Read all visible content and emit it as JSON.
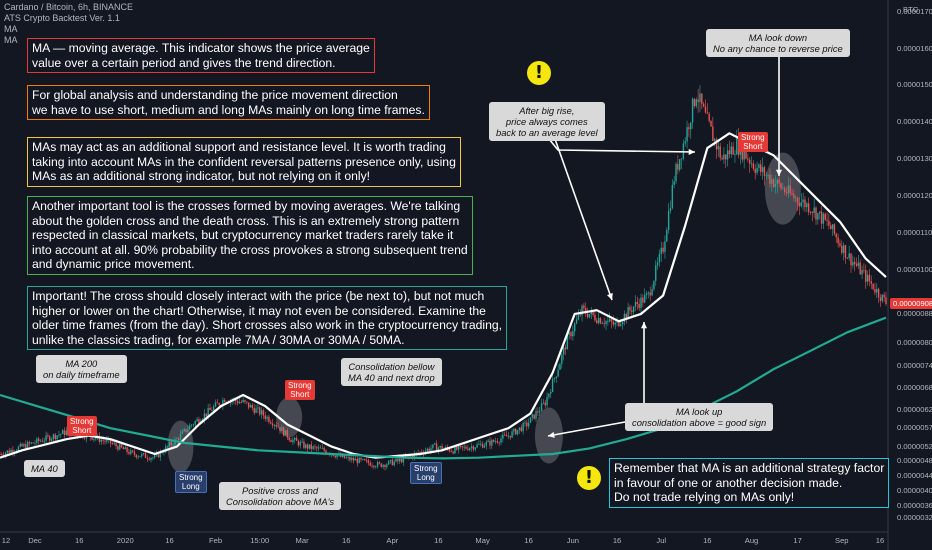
{
  "header": {
    "title": "Cardano / Bitcoin, 6h, BINANCE",
    "indicator": "ATS Crypto Backtest Ver. 1.1",
    "ma1": "MA",
    "ma2": "MA"
  },
  "colors": {
    "background": "#131722",
    "candle_up": "#26a69a",
    "candle_down": "#ef5350",
    "ma_short": "#ffffff",
    "ma_long": "#22ab94",
    "annotation_line": "#ffffff",
    "note1_border": "#e53935",
    "note2_border": "#f57c00",
    "note3_border": "#f5c542",
    "note4_border": "#4caf50",
    "note5_border": "#26a69a",
    "note6_border": "#26c6da"
  },
  "notes": {
    "n1": [
      "MA — moving average. This indicator shows the price average",
      "value over a certain period and gives the trend direction."
    ],
    "n2": [
      "For global analysis and understanding the price movement direction",
      "we have to use short, medium and long MAs mainly on long time frames."
    ],
    "n3": [
      "MAs may act as an additional support and resistance level. It is worth trading",
      "taking into account MAs in the confident reversal patterns presence only, using",
      "MAs as an additional strong indicator, but not relying on it only!"
    ],
    "n4": [
      "Another important tool is the crosses formed by moving averages. We're talking",
      "about the golden cross and the death cross. This is an extremely strong pattern",
      "respected in classical markets, but cryptocurrency market traders rarely take it",
      "into account at all. 90% probability the cross provokes a strong subsequent trend",
      "and dynamic price movement."
    ],
    "n5": [
      "Important! The cross should closely interact with the price (be next to), but not much",
      "higher or lower on the chart! Otherwise, it may not even be considered. Examine the",
      "older time frames (from the day). Short crosses also work in the cryptocurrency trading,",
      "unlike the classics trading, for example 7MA / 30MA or 30MA / 50MA."
    ],
    "n6": [
      "Remember that MA is an additional strategy factor",
      "in favour of one or another decision made.",
      "Do not trade relying on MAs only!"
    ]
  },
  "callouts": {
    "ma200": [
      "MA 200",
      "on daily timeframe"
    ],
    "ma40": [
      "MA 40"
    ],
    "consolidation": [
      "Consolidation bellow",
      "MA 40 and next drop"
    ],
    "positive": [
      "Positive cross and",
      "Consolidation above MA's"
    ],
    "bigrise": [
      "After big rise,",
      "price always comes",
      "back to an average level"
    ],
    "lookup": [
      "MA look up",
      "consolidation above = good sign"
    ],
    "lookdown": [
      "MA look down",
      "No any chance to reverse price"
    ]
  },
  "signals": {
    "short1": [
      "Strong",
      "Short"
    ],
    "short2": [
      "Strong",
      "Short"
    ],
    "short3": [
      "Strong",
      "Short"
    ],
    "long1": [
      "Strong",
      "Long"
    ],
    "long2": [
      "Strong",
      "Long"
    ]
  },
  "warn_symbol": "!",
  "chart_data": {
    "type": "line",
    "title": "Cardano / Bitcoin, 6h, BINANCE",
    "currency": "BTC",
    "last_price": "0.00000908",
    "ylim": [
      3.1e-06,
      1.71e-05
    ],
    "y_ticks": [
      "0.00001700",
      "0.00001600",
      "0.00001500",
      "0.00001400",
      "0.00001300",
      "0.00001200",
      "0.00001100",
      "0.00001000",
      "0.00000880",
      "0.00000800",
      "0.00000740",
      "0.00000680",
      "0.00000620",
      "0.00000570",
      "0.00000520",
      "0.00000480",
      "0.00000440",
      "0.00000400",
      "0.00000360",
      "0.00000325"
    ],
    "x_ticks": [
      "12",
      "Dec",
      "16",
      "2020",
      "16",
      "Feb",
      "15:00",
      "Mar",
      "16",
      "Apr",
      "16",
      "May",
      "16",
      "Jun",
      "16",
      "Jul",
      "16",
      "Aug",
      "17",
      "Sep",
      "16"
    ],
    "x_tick_index": [
      0,
      19,
      43,
      68,
      92,
      117,
      141,
      164,
      188,
      213,
      238,
      262,
      287,
      311,
      335,
      359,
      384,
      408,
      433,
      457,
      481
    ],
    "x_index_range": [
      0,
      481
    ],
    "series": [
      {
        "name": "MA 40",
        "x": [
          0,
          12,
          24,
          36,
          48,
          60,
          72,
          84,
          96,
          108,
          120,
          132,
          144,
          156,
          168,
          180,
          192,
          204,
          216,
          228,
          240,
          252,
          264,
          276,
          288,
          300,
          312,
          324,
          336,
          348,
          360,
          372,
          384,
          396,
          408,
          420,
          432,
          444,
          456,
          470,
          481
        ],
        "values": [
          4.9e-06,
          5.1e-06,
          5.25e-06,
          5.4e-06,
          5.5e-06,
          5.4e-06,
          5.2e-06,
          5e-06,
          5.2e-06,
          5.8e-06,
          6.3e-06,
          6.6e-06,
          6.3e-06,
          5.8e-06,
          5.5e-06,
          5.2e-06,
          5e-06,
          4.9e-06,
          4.95e-06,
          5e-06,
          5.1e-06,
          5.3e-06,
          5.5e-06,
          5.7e-06,
          6.1e-06,
          7.2e-06,
          8.8e-06,
          8.9e-06,
          8.6e-06,
          8.8e-06,
          9.3e-06,
          1.12e-05,
          1.33e-05,
          1.37e-05,
          1.34e-05,
          1.31e-05,
          1.25e-05,
          1.19e-05,
          1.13e-05,
          1.03e-05,
          9.8e-06
        ]
      },
      {
        "name": "MA 200",
        "x": [
          0,
          20,
          40,
          60,
          80,
          100,
          120,
          140,
          160,
          180,
          200,
          220,
          240,
          260,
          280,
          300,
          320,
          340,
          360,
          380,
          400,
          420,
          440,
          460,
          481
        ],
        "values": [
          6.6e-06,
          6.3e-06,
          6e-06,
          5.7e-06,
          5.5e-06,
          5.3e-06,
          5.2e-06,
          5.1e-06,
          5.05e-06,
          5e-06,
          4.95e-06,
          4.9e-06,
          4.88e-06,
          4.9e-06,
          4.95e-06,
          5e-06,
          5.15e-06,
          5.4e-06,
          5.7e-06,
          6.2e-06,
          6.7e-06,
          7.3e-06,
          7.8e-06,
          8.3e-06,
          8.7e-06
        ]
      }
    ],
    "price_path": {
      "x": [
        0,
        12,
        24,
        36,
        48,
        60,
        72,
        84,
        96,
        104,
        112,
        122,
        132,
        142,
        150,
        158,
        166,
        176,
        186,
        196,
        206,
        216,
        226,
        236,
        246,
        256,
        266,
        276,
        286,
        296,
        302,
        308,
        316,
        324,
        334,
        344,
        352,
        360,
        366,
        372,
        378,
        384,
        392,
        400,
        410,
        420,
        430,
        440,
        450,
        460,
        470,
        478,
        481
      ],
      "values": [
        5e-06,
        5.2e-06,
        5.4e-06,
        5.6e-06,
        5.5e-06,
        5.3e-06,
        5e-06,
        4.9e-06,
        5.4e-06,
        5.8e-06,
        6.1e-06,
        6.5e-06,
        6.4e-06,
        6.1e-06,
        5.8e-06,
        5.4e-06,
        5.2e-06,
        5.1e-06,
        4.9e-06,
        4.8e-06,
        4.7e-06,
        4.8e-06,
        5e-06,
        5.2e-06,
        5.1e-06,
        5.2e-06,
        5.3e-06,
        5.5e-06,
        5.8e-06,
        6.4e-06,
        7.2e-06,
        8.1e-06,
        8.9e-06,
        8.7e-06,
        8.5e-06,
        9e-06,
        9.3e-06,
        1.06e-05,
        1.25e-05,
        1.36e-05,
        1.48e-05,
        1.4e-05,
        1.3e-05,
        1.34e-05,
        1.28e-05,
        1.24e-05,
        1.2e-05,
        1.17e-05,
        1.12e-05,
        1.04e-05,
        9.8e-06,
        9.3e-06,
        9.1e-06
      ]
    }
  }
}
